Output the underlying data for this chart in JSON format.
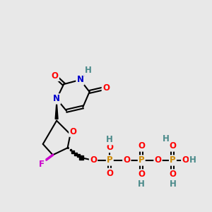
{
  "background_color": "#e8e8e8",
  "atom_colors": {
    "O": "#ff0000",
    "N": "#0000cc",
    "P": "#cc8800",
    "F": "#cc00cc",
    "H": "#4a8a8a",
    "C": "#000000"
  },
  "bond_color": "#000000",
  "bond_width": 1.5,
  "font_size_atom": 8.5
}
